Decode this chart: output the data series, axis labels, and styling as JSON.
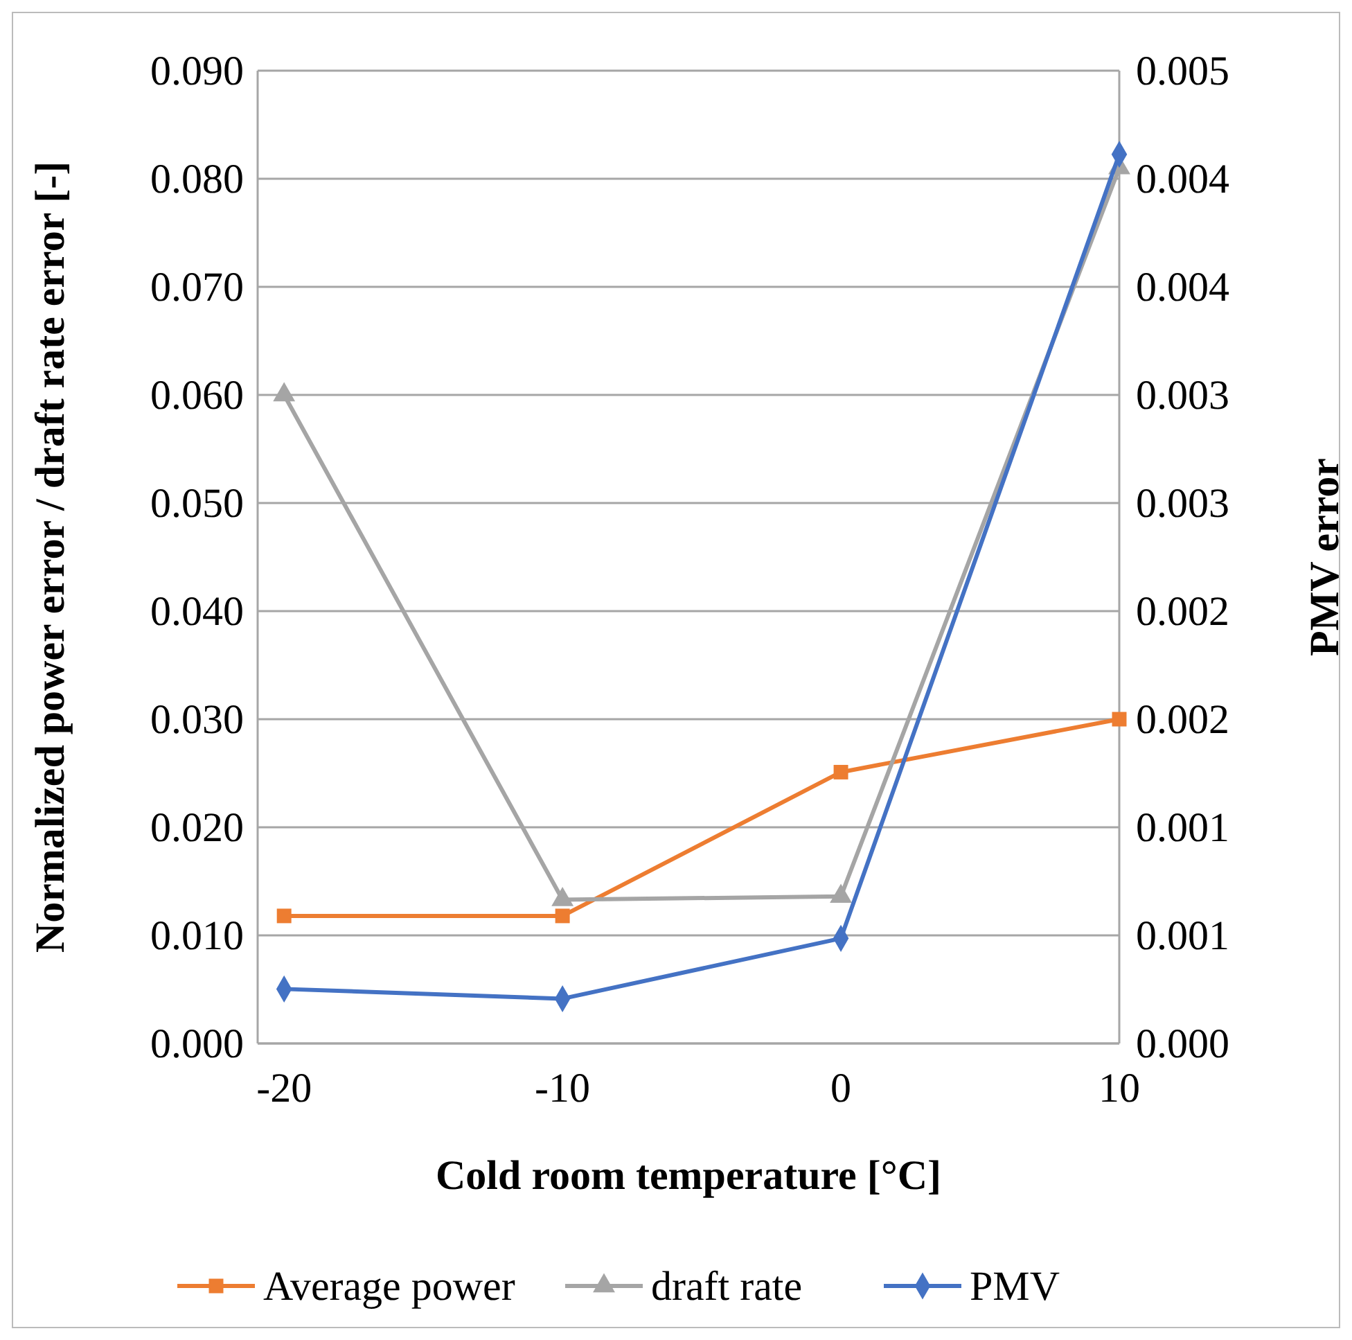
{
  "chart_data": {
    "type": "line",
    "xlabel": "Cold room temperature [°C]",
    "ylabel": "Normalized power error  / draft rate error [-]",
    "y2label": "PMV error",
    "categories": [
      "-20",
      "-10",
      "0",
      "10"
    ],
    "series": [
      {
        "name": "Average power",
        "color": "#ed7d31",
        "marker": "square",
        "values": [
          0.0118,
          0.0118,
          0.0251,
          0.03
        ]
      },
      {
        "name": "draft rate",
        "color": "#a5a5a5",
        "marker": "triangle",
        "values": [
          0.06,
          0.0133,
          0.0136,
          0.081
        ]
      },
      {
        "name": "PMV",
        "color": "#4472c4",
        "marker": "diamond",
        "axis": "y2",
        "values": [
          0.00028,
          0.00023,
          0.00054,
          0.00457
        ]
      }
    ],
    "ylim": [
      0,
      0.09
    ],
    "yticks": [
      {
        "value": 0,
        "label": "0.000"
      },
      {
        "value": 0.01,
        "label": "0.010"
      },
      {
        "value": 0.02,
        "label": "0.020"
      },
      {
        "value": 0.03,
        "label": "0.030"
      },
      {
        "value": 0.04,
        "label": "0.040"
      },
      {
        "value": 0.05,
        "label": "0.050"
      },
      {
        "value": 0.06,
        "label": "0.060"
      },
      {
        "value": 0.07,
        "label": "0.070"
      },
      {
        "value": 0.08,
        "label": "0.080"
      },
      {
        "value": 0.09,
        "label": "0.090"
      }
    ],
    "y2lim": [
      0,
      0.005
    ],
    "y2ticks": [
      {
        "value": 0,
        "label": "0.000"
      },
      {
        "value": 0.000556,
        "label": "0.001"
      },
      {
        "value": 0.001111,
        "label": "0.001"
      },
      {
        "value": 0.001667,
        "label": "0.002"
      },
      {
        "value": 0.002222,
        "label": "0.002"
      },
      {
        "value": 0.002778,
        "label": "0.003"
      },
      {
        "value": 0.003333,
        "label": "0.003"
      },
      {
        "value": 0.003889,
        "label": "0.004"
      },
      {
        "value": 0.004444,
        "label": "0.004"
      },
      {
        "value": 0.005,
        "label": "0.005"
      }
    ],
    "grid": "y",
    "legend": "bottom"
  }
}
